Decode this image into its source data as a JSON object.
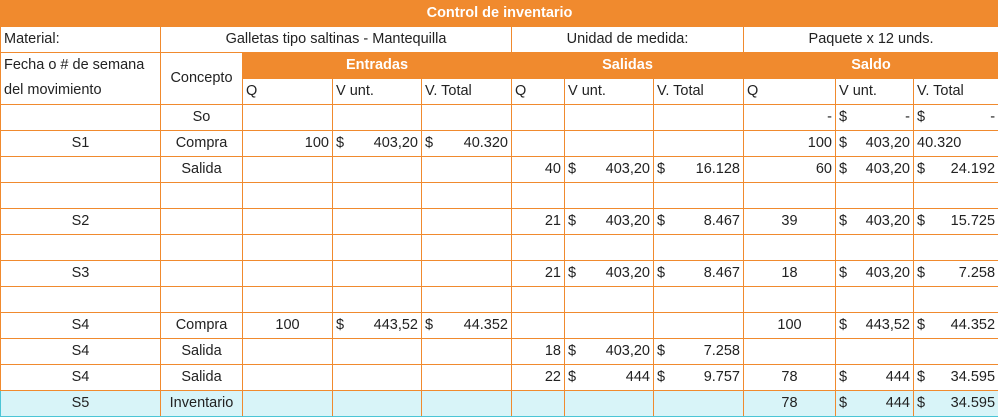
{
  "title": "Control de inventario",
  "meta": {
    "material_label": "Material:",
    "material_value": "Galletas tipo saltinas - Mantequilla",
    "unit_label": "Unidad de medida:",
    "unit_value": "Paquete x 12 unds."
  },
  "headers": {
    "fecha_line1": "Fecha o # de semana",
    "fecha_line2": "del movimiento",
    "concepto": "Concepto",
    "entradas": "Entradas",
    "salidas": "Salidas",
    "saldo": "Saldo",
    "q": "Q",
    "vunt": "V unt.",
    "vtotal": "V. Total"
  },
  "rows": [
    {
      "fecha": "",
      "concepto": "So",
      "eq": "",
      "evu": "",
      "evt": "",
      "sq": "",
      "svu": "",
      "svt": "",
      "bq": "-",
      "bvu": "-",
      "bvt": "-",
      "flags": "bvu bvt"
    },
    {
      "fecha": "S1",
      "concepto": "Compra",
      "eq": "100",
      "evu": "403,20",
      "evt": "40.320",
      "sq": "",
      "svu": "",
      "svt": "",
      "bq": "100",
      "bvu": "403,20",
      "bvt": "40.320",
      "flags": "evu evt bvu"
    },
    {
      "fecha": "",
      "concepto": "Salida",
      "eq": "",
      "evu": "",
      "evt": "",
      "sq": "40",
      "svu": "403,20",
      "svt": "16.128",
      "bq": "60",
      "bvu": "403,20",
      "bvt": "24.192",
      "flags": "svu svt bvu bvt"
    },
    {
      "fecha": "",
      "concepto": "",
      "eq": "",
      "evu": "",
      "evt": "",
      "sq": "",
      "svu": "",
      "svt": "",
      "bq": "",
      "bvu": "",
      "bvt": "",
      "flags": ""
    },
    {
      "fecha": "S2",
      "concepto": "",
      "eq": "",
      "evu": "",
      "evt": "",
      "sq": "21",
      "svu": "403,20",
      "svt": "8.467",
      "bq": "39",
      "bvu": "403,20",
      "bvt": "15.725",
      "flags": "svu svt bvu bvt"
    },
    {
      "fecha": "",
      "concepto": "",
      "eq": "",
      "evu": "",
      "evt": "",
      "sq": "",
      "svu": "",
      "svt": "",
      "bq": "",
      "bvu": "",
      "bvt": "",
      "flags": ""
    },
    {
      "fecha": "S3",
      "concepto": "",
      "eq": "",
      "evu": "",
      "evt": "",
      "sq": "21",
      "svu": "403,20",
      "svt": "8.467",
      "bq": "18",
      "bvu": "403,20",
      "bvt": "7.258",
      "flags": "svu svt bvu bvt"
    },
    {
      "fecha": "",
      "concepto": "",
      "eq": "",
      "evu": "",
      "evt": "",
      "sq": "",
      "svu": "",
      "svt": "",
      "bq": "",
      "bvu": "",
      "bvt": "",
      "flags": ""
    },
    {
      "fecha": "S4",
      "concepto": "Compra",
      "eq": "100",
      "evu": "443,52",
      "evt": "44.352",
      "sq": "",
      "svu": "",
      "svt": "",
      "bq": "100",
      "bvu": "443,52",
      "bvt": "44.352",
      "flags": "evu evt bvu bvt"
    },
    {
      "fecha": "S4",
      "concepto": "Salida",
      "eq": "",
      "evu": "",
      "evt": "",
      "sq": "18",
      "svu": "403,20",
      "svt": "7.258",
      "bq": "",
      "bvu": "",
      "bvt": "",
      "flags": "svu svt"
    },
    {
      "fecha": "S4",
      "concepto": "Salida",
      "eq": "",
      "evu": "",
      "evt": "",
      "sq": "22",
      "svu": "444",
      "svt": "9.757",
      "bq": "78",
      "bvu": "444",
      "bvt": "34.595",
      "flags": "svu svt bvu bvt"
    },
    {
      "fecha": "S5",
      "concepto": "Inventario",
      "eq": "",
      "evu": "",
      "evt": "",
      "sq": "",
      "svu": "",
      "svt": "",
      "bq": "78",
      "bvu": "444",
      "bvt": "34.595",
      "flags": "bvu bvt",
      "highlight": true
    }
  ],
  "currency": "$",
  "colors": {
    "accent": "#f08a2e",
    "highlight_bg": "#d8f4f8",
    "highlight_border": "#4bc5d6"
  }
}
